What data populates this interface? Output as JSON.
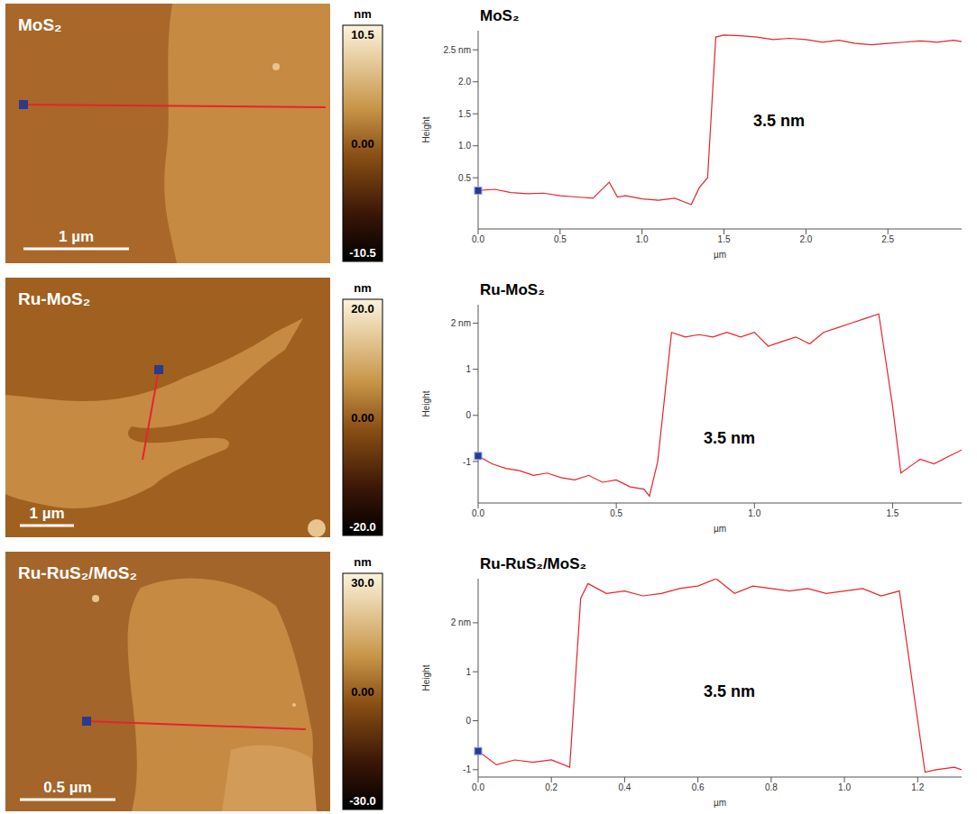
{
  "chart_data": [
    {
      "type": "line",
      "title": "MoS₂",
      "image_label": "MoS₂",
      "scale_bar": "1 µm",
      "colorbar": {
        "unit": "nm",
        "range": [
          -10.5,
          10.5
        ],
        "ticks": [
          {
            "value": 10.5,
            "label": "10.5"
          },
          {
            "value": 0,
            "label": "0.00"
          },
          {
            "value": -10.5,
            "label": "-10.5"
          }
        ]
      },
      "annotation": "3.5 nm",
      "x_label": "µm",
      "y_label": "Height",
      "color": "#e8232a",
      "x": [
        0,
        0.1,
        0.2,
        0.3,
        0.4,
        0.5,
        0.6,
        0.7,
        0.8,
        0.85,
        0.9,
        1.0,
        1.1,
        1.2,
        1.25,
        1.3,
        1.35,
        1.4,
        1.45,
        1.5,
        1.6,
        1.7,
        1.8,
        1.9,
        2.0,
        2.1,
        2.2,
        2.3,
        2.4,
        2.5,
        2.6,
        2.7,
        2.8,
        2.9,
        2.95
      ],
      "values": [
        0.3,
        0.32,
        0.27,
        0.25,
        0.26,
        0.22,
        0.2,
        0.18,
        0.43,
        0.2,
        0.22,
        0.17,
        0.15,
        0.18,
        0.13,
        0.08,
        0.35,
        0.5,
        2.7,
        2.73,
        2.72,
        2.7,
        2.66,
        2.68,
        2.66,
        2.62,
        2.65,
        2.6,
        2.58,
        2.6,
        2.62,
        2.64,
        2.62,
        2.65,
        2.63
      ],
      "xlim": [
        0,
        2.95
      ],
      "xticks": [
        {
          "value": 0,
          "label": "0.0"
        },
        {
          "value": 0.5,
          "label": "0.5"
        },
        {
          "value": 1,
          "label": "1.0"
        },
        {
          "value": 1.5,
          "label": "1.5"
        },
        {
          "value": 2,
          "label": "2.0"
        },
        {
          "value": 2.5,
          "label": "2.5"
        }
      ],
      "ylim": [
        -0.3,
        2.8
      ],
      "yticks": [
        {
          "value": 0.5,
          "label": "0.5"
        },
        {
          "value": 1,
          "label": "1.0"
        },
        {
          "value": 1.5,
          "label": "1.5"
        },
        {
          "value": 2,
          "label": "2.0"
        },
        {
          "value": 2.5,
          "label": "2.5 nm"
        }
      ]
    },
    {
      "type": "line",
      "title": "Ru-MoS₂",
      "image_label": "Ru-MoS₂",
      "scale_bar": "1 µm",
      "colorbar": {
        "unit": "nm",
        "range": [
          -20,
          20
        ],
        "ticks": [
          {
            "value": 20,
            "label": "20.0"
          },
          {
            "value": 0,
            "label": "0.00"
          },
          {
            "value": -20,
            "label": "-20.0"
          }
        ]
      },
      "annotation": "3.5 nm",
      "x_label": "µm",
      "y_label": "Height",
      "color": "#e8232a",
      "x": [
        0,
        0.05,
        0.1,
        0.15,
        0.2,
        0.25,
        0.3,
        0.35,
        0.4,
        0.45,
        0.5,
        0.55,
        0.6,
        0.62,
        0.65,
        0.7,
        0.75,
        0.8,
        0.85,
        0.9,
        0.95,
        1.0,
        1.05,
        1.1,
        1.15,
        1.2,
        1.25,
        1.3,
        1.35,
        1.4,
        1.45,
        1.5,
        1.53,
        1.6,
        1.65,
        1.7,
        1.75
      ],
      "values": [
        -0.88,
        -1.05,
        -1.15,
        -1.2,
        -1.3,
        -1.25,
        -1.35,
        -1.4,
        -1.3,
        -1.45,
        -1.4,
        -1.55,
        -1.6,
        -1.75,
        -1.0,
        1.8,
        1.7,
        1.75,
        1.7,
        1.8,
        1.7,
        1.8,
        1.5,
        1.6,
        1.7,
        1.55,
        1.8,
        1.9,
        2.0,
        2.1,
        2.2,
        0.2,
        -1.25,
        -0.95,
        -1.05,
        -0.9,
        -0.75
      ],
      "xlim": [
        0,
        1.75
      ],
      "xticks": [
        {
          "value": 0,
          "label": "0.0"
        },
        {
          "value": 0.5,
          "label": "0.5"
        },
        {
          "value": 1,
          "label": "1.0"
        },
        {
          "value": 1.5,
          "label": "1.5"
        }
      ],
      "ylim": [
        -1.9,
        2.4
      ],
      "yticks": [
        -1,
        0,
        1,
        {
          "value": 2,
          "label": "2 nm"
        }
      ]
    },
    {
      "type": "line",
      "title": "Ru-RuS₂/MoS₂",
      "image_label": "Ru-RuS₂/MoS₂",
      "scale_bar": "0.5 µm",
      "colorbar": {
        "unit": "nm",
        "range": [
          -30,
          30
        ],
        "ticks": [
          {
            "value": 30,
            "label": "30.0"
          },
          {
            "value": 0,
            "label": "0.00"
          },
          {
            "value": -30,
            "label": "-30.0"
          }
        ]
      },
      "annotation": "3.5 nm",
      "x_label": "µm",
      "y_label": "Height",
      "color": "#e8232a",
      "x": [
        0,
        0.05,
        0.1,
        0.15,
        0.2,
        0.25,
        0.28,
        0.3,
        0.35,
        0.4,
        0.45,
        0.5,
        0.55,
        0.6,
        0.65,
        0.7,
        0.75,
        0.8,
        0.85,
        0.9,
        0.95,
        1.0,
        1.05,
        1.1,
        1.15,
        1.2,
        1.22,
        1.25,
        1.3,
        1.32
      ],
      "values": [
        -0.62,
        -0.9,
        -0.8,
        -0.85,
        -0.8,
        -0.95,
        2.5,
        2.8,
        2.6,
        2.65,
        2.55,
        2.6,
        2.7,
        2.75,
        2.9,
        2.6,
        2.75,
        2.7,
        2.65,
        2.7,
        2.6,
        2.65,
        2.7,
        2.55,
        2.65,
        0.0,
        -1.05,
        -1.0,
        -0.95,
        -1.0
      ],
      "xlim": [
        0,
        1.32
      ],
      "xticks": [
        {
          "value": 0,
          "label": "0.0"
        },
        {
          "value": 0.2,
          "label": "0.2"
        },
        {
          "value": 0.4,
          "label": "0.4"
        },
        {
          "value": 0.6,
          "label": "0.6"
        },
        {
          "value": 0.8,
          "label": "0.8"
        },
        {
          "value": 1,
          "label": "1.0"
        },
        {
          "value": 1.2,
          "label": "1.2"
        }
      ],
      "ylim": [
        -1.15,
        2.9
      ],
      "yticks": [
        -1,
        0,
        1,
        {
          "value": 2,
          "label": "2 nm"
        }
      ]
    }
  ]
}
